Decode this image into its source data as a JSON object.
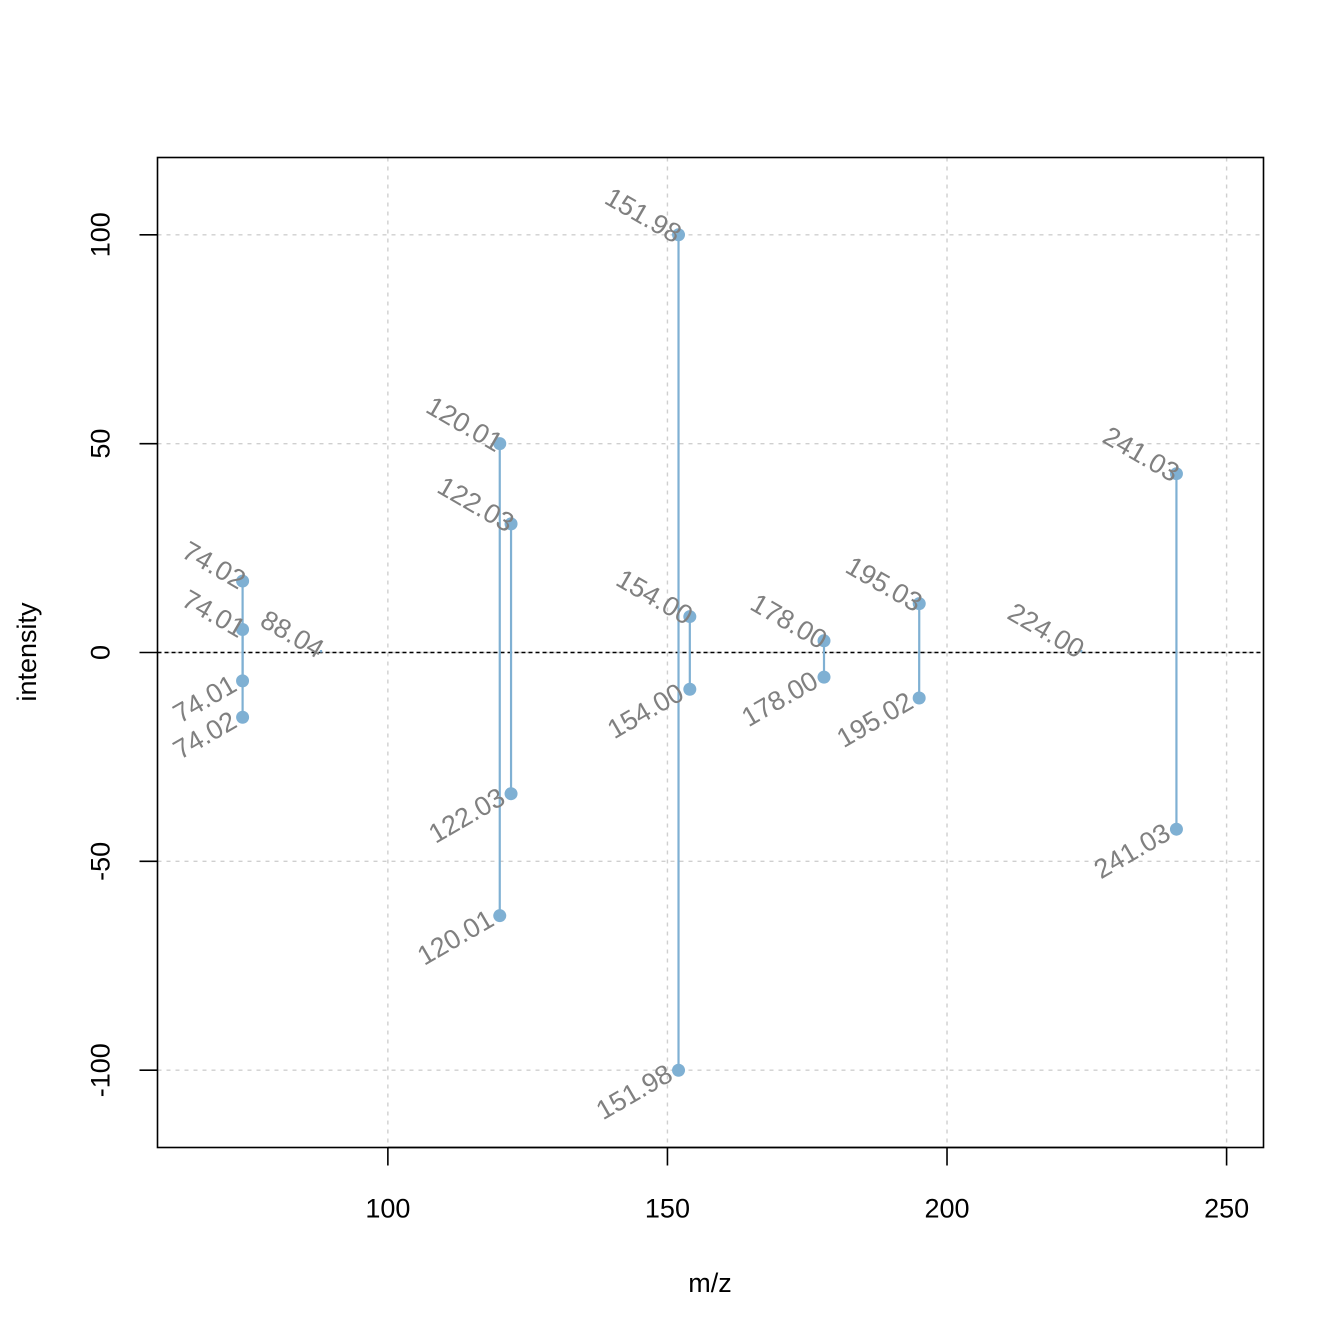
{
  "chart_data": {
    "type": "mirror-stem",
    "title": "",
    "xlabel": "m/z",
    "ylabel": "intensity",
    "xlim": [
      58.8,
      256.6
    ],
    "ylim": [
      -118.5,
      118.5
    ],
    "xticks": [
      100,
      150,
      200,
      250
    ],
    "yticks": [
      -100,
      -50,
      0,
      50,
      100
    ],
    "xtick_labels": [
      "100",
      "150",
      "200",
      "250"
    ],
    "ytick_labels": [
      "-100",
      "-50",
      "0",
      "50",
      "100"
    ],
    "grid": true,
    "zero_line": true,
    "colors": {
      "stem": "#7FB0D3",
      "point": "#7FB0D3",
      "label": "#808080",
      "grid": "#CFCFCF",
      "axis": "#000000"
    },
    "series": [
      {
        "role": "top",
        "peaks": [
          {
            "mz": 74.02,
            "intensity": 17.1,
            "label": "74.02"
          },
          {
            "mz": 74.01,
            "intensity": 5.5,
            "label": "74.01"
          },
          {
            "mz": 88.04,
            "intensity": 0.6,
            "label": "88.04"
          },
          {
            "mz": 120.01,
            "intensity": 50.0,
            "label": "120.01"
          },
          {
            "mz": 122.03,
            "intensity": 30.8,
            "label": "122.03"
          },
          {
            "mz": 151.98,
            "intensity": 100.0,
            "label": "151.98"
          },
          {
            "mz": 154.0,
            "intensity": 8.6,
            "label": "154.00"
          },
          {
            "mz": 178.0,
            "intensity": 2.8,
            "label": "178.00"
          },
          {
            "mz": 195.03,
            "intensity": 11.7,
            "label": "195.03"
          },
          {
            "mz": 224.0,
            "intensity": 0.6,
            "label": "224.00"
          },
          {
            "mz": 241.03,
            "intensity": 42.8,
            "label": "241.03"
          }
        ]
      },
      {
        "role": "bottom",
        "peaks": [
          {
            "mz": 74.01,
            "intensity": -6.8,
            "label": "74.01"
          },
          {
            "mz": 74.02,
            "intensity": -15.5,
            "label": "74.02"
          },
          {
            "mz": 120.01,
            "intensity": -63.0,
            "label": "120.01"
          },
          {
            "mz": 122.03,
            "intensity": -33.8,
            "label": "122.03"
          },
          {
            "mz": 151.98,
            "intensity": -100.0,
            "label": "151.98"
          },
          {
            "mz": 154.0,
            "intensity": -8.8,
            "label": "154.00"
          },
          {
            "mz": 178.0,
            "intensity": -5.9,
            "label": "178.00"
          },
          {
            "mz": 195.02,
            "intensity": -10.9,
            "label": "195.02"
          },
          {
            "mz": 241.03,
            "intensity": -42.3,
            "label": "241.03"
          }
        ]
      }
    ]
  }
}
